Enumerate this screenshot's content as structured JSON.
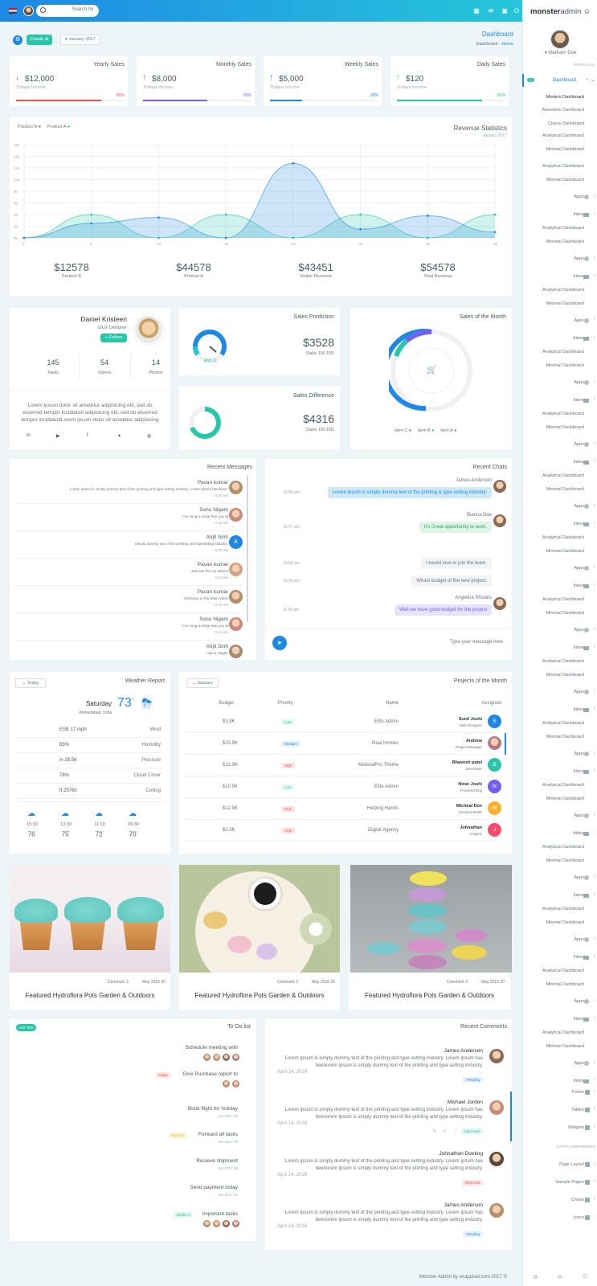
{
  "topbar": {
    "search_placeholder": "Search for"
  },
  "brand": {
    "bold": "monster",
    "light": "admin"
  },
  "user": {
    "name": "Markarn Doe"
  },
  "sidebar": {
    "section_personal": "PERSONAL",
    "active": "Dashboard",
    "active_badge": "4",
    "submenu": [
      "Modern Dashboard",
      "Awesome Dashboard",
      "Classy Dashboard",
      "Analytical Dashboard",
      "Minimal Dashboard"
    ],
    "repeat": [
      "Analytical Dashboard",
      "Minimal Dashboard",
      "Apps",
      "Inbox"
    ],
    "forms": "Forms",
    "tables": "Tables",
    "widgets": "Widgets",
    "section_extra": "EXTRA COMPONENTS",
    "page_layout": "Page Layout",
    "sample_pages": "Sample Pages",
    "charts": "Charts",
    "icons": "Icons"
  },
  "toolbar": {
    "create": "Create",
    "month": "January 2017"
  },
  "breadcrumb": {
    "title": "Dashboard",
    "trail": "Dashboard",
    "home": "Home"
  },
  "stats": [
    {
      "title": "Yearly Sales",
      "value": "$12,000",
      "sub": "Todays Income",
      "pct": "80%",
      "fill": 0.8,
      "color": "#ef5350",
      "arrow": "↓",
      "acolor": "#ef5350"
    },
    {
      "title": "Monthly Sales",
      "value": "$8,000",
      "sub": "Todays Income",
      "pct": "60%",
      "fill": 0.6,
      "color": "#7460ee",
      "arrow": "↑",
      "acolor": "#7460ee"
    },
    {
      "title": "Weekly Sales",
      "value": "$5,000",
      "sub": "Todays Income",
      "pct": "30%",
      "fill": 0.3,
      "color": "#1e88e5",
      "arrow": "↑",
      "acolor": "#1e88e5"
    },
    {
      "title": "Daily Sales",
      "value": "$120",
      "sub": "Todays Income",
      "pct": "80%",
      "fill": 0.8,
      "color": "#26c6a8",
      "arrow": "↑",
      "acolor": "#26c6a8"
    }
  ],
  "revenue": {
    "title": "Revenue Statistics",
    "sub": "January 2017",
    "legend": [
      "Product B",
      "Product A"
    ],
    "totals": [
      {
        "v": "$12578",
        "l": "Product B"
      },
      {
        "v": "$44578",
        "l": "Product A"
      },
      {
        "v": "$43451",
        "l": "Online Revenue"
      },
      {
        "v": "$54578",
        "l": "Total Revenue"
      }
    ]
  },
  "chart_data": {
    "type": "area",
    "x": [
      "0",
      "5",
      "10",
      "15",
      "20",
      "25",
      "30",
      "35"
    ],
    "yticks": [
      "0k",
      "2k",
      "4k",
      "6k",
      "8k",
      "10k",
      "12k",
      "14k",
      "16k"
    ],
    "ylim": [
      0,
      16
    ],
    "series": [
      {
        "name": "Product B",
        "color": "#1e88e5",
        "values": [
          0,
          2.5,
          3.5,
          0,
          12.8,
          1.5,
          3.8,
          1
        ]
      },
      {
        "name": "Product A",
        "color": "#26c6a8",
        "values": [
          0,
          4,
          0,
          4,
          0,
          4,
          0,
          4
        ]
      }
    ]
  },
  "profile": {
    "name": "Daniel Kristeen",
    "role": "UIUX Designer",
    "follow": "Follow",
    "stats": [
      {
        "v": "145",
        "l": "Tasks"
      },
      {
        "v": "54",
        "l": "Videos"
      },
      {
        "v": "14",
        "l": "Photos"
      }
    ],
    "bio": "Lorem ipsum dolor sit ametetur adipisicing elit, sed do eiusmod tempor incididunt adipisicing elit, sed do eiusmod tempor incididuntLorem ipsum dolor sit ametetur adipisicing elit, sed do eiusmod tempor incididunt"
  },
  "prediction": {
    "title": "Sales Prediction",
    "value": "$3528",
    "sub": "(Sales 150-165)",
    "gauge": "Ahd 11"
  },
  "difference": {
    "title": "Sales Difference",
    "value": "$4316",
    "sub": "(Sales 150-165)"
  },
  "month_sales": {
    "title": "Sales of the Month",
    "legend": [
      "Item C",
      "Item B",
      "Item A"
    ]
  },
  "messages": {
    "title": "Recent Messages",
    "items": [
      {
        "name": "Pavan kumar",
        "text": "Lorem Ipsum is simply dummy text of the printing and type setting industry. Lorem Ipsum has been.",
        "time": "9:30 AM"
      },
      {
        "name": "Sonu Nigam",
        "text": "I've sung a song! See you at",
        "time": "9:10 AM"
      },
      {
        "name": "Arijit Sinh",
        "text": "Simply dummy text of the printing and typesetting industry.",
        "time": "9:08 AM",
        "initial": "A"
      },
      {
        "name": "Pavan kumar",
        "text": "Just see the my admin!",
        "time": "9:02 AM"
      },
      {
        "name": "Pavan kumar",
        "text": "Welcome to the Elite Admin",
        "time": "9:30 AM"
      },
      {
        "name": "Sonu Nigam",
        "text": "I've sung a song! See you at",
        "time": "9:10 AM"
      },
      {
        "name": "Arijit Sinh",
        "text": "I am a singer!",
        "time": ""
      }
    ]
  },
  "chats": {
    "title": "Recent Chats",
    "placeholder": "Type your message here",
    "items": [
      {
        "name": "James Anderson",
        "text": "Lorem Ipsum is simply dummy text of the printing & type setting industry.",
        "time": "10:56 am"
      },
      {
        "name": "Bianca Doe",
        "text": "It's Great opportunity to work.",
        "time": "10:57 am"
      },
      {
        "name": "",
        "text": "I would love to join the team.",
        "time": "10:58 am"
      },
      {
        "name": "",
        "text": "Whats budget of the new project.",
        "time": "10:59 am"
      },
      {
        "name": "Angelina Rhodes",
        "text": "Well we have good budget for the project",
        "time": "11:00 am"
      }
    ]
  },
  "weather": {
    "title": "Weather Report",
    "filter": "Today",
    "day": "Saturday",
    "temp": "73",
    "loc": "Ahmedabad, India",
    "rows": [
      [
        "ESE 17 mph",
        "Wind"
      ],
      [
        "83%",
        "Humidity"
      ],
      [
        "in 28.56",
        "Pressure"
      ],
      [
        "78%",
        "Cloud Cover"
      ],
      [
        "ft 25760",
        "Ceiling"
      ]
    ],
    "forecast": [
      {
        "t": "09:30",
        "v": "70"
      },
      {
        "t": "11:30",
        "v": "72"
      },
      {
        "t": "13:30",
        "v": "75"
      },
      {
        "t": "15:30",
        "v": "76"
      }
    ]
  },
  "projects": {
    "title": "Projects of the Month",
    "filter": "January",
    "headers": [
      "Assigned",
      "Name",
      "Priority",
      "Budget"
    ],
    "rows": [
      {
        "name": "Sunil Joshi",
        "role": "Web Designer",
        "project": "Elite Admin",
        "priority": "Low",
        "budget": "$3.9K",
        "initial": "S",
        "color": "#1e88e5"
      },
      {
        "name": "Andrew",
        "role": "Project Manager",
        "project": "Real Homes",
        "priority": "Medium",
        "budget": "$23.9K",
        "initial": "",
        "color": "#d9a5b5"
      },
      {
        "name": "Bhavesh patel",
        "role": "Developer",
        "project": "MedicalPro Theme",
        "priority": "High",
        "budget": "$12.9K",
        "initial": "B",
        "color": "#26c6a8"
      },
      {
        "name": "Nirav Joshi",
        "role": "Frontend Eng",
        "project": "Elite Admin",
        "priority": "Low",
        "budget": "$10.9K",
        "initial": "N",
        "color": "#7460ee"
      },
      {
        "name": "Micheal Doe",
        "role": "Content Writer",
        "project": "Helping Hands",
        "priority": "High",
        "budget": "$12.9K",
        "initial": "M",
        "color": "#ffb22b"
      },
      {
        "name": "Johnathan",
        "role": "Graphic",
        "project": "Digital Agency",
        "priority": "High",
        "budget": "$2.6K",
        "initial": "J",
        "color": "#fc4b6c"
      }
    ]
  },
  "posts": [
    {
      "date": "May 2016 20",
      "comments": "Comment 3",
      "title": "Featured Hydroflora Pots Garden & Outdoors"
    },
    {
      "date": "May 2016 20",
      "comments": "Comment 3",
      "title": "Featured Hydroflora Pots Garden & Outdoors"
    },
    {
      "date": "May 2016 20",
      "comments": "Comment 3",
      "title": "Featured Hydroflora Pots Garden & Outdoors"
    }
  ],
  "todo": {
    "title": "To Do list",
    "add": "Add Task",
    "items": [
      {
        "text": "Schedule meeting with",
        "date": "",
        "tag": ""
      },
      {
        "text": "Give Purchase report to",
        "date": "",
        "tag": "Today"
      },
      {
        "text": "Book flight for holiday",
        "date": "Jun 2017 26",
        "tag": ""
      },
      {
        "text": "Forward all tasks",
        "date": "Jun 2017 26",
        "tag": "weeks 2"
      },
      {
        "text": "Recieve shipment",
        "date": "Jun 2017 26",
        "tag": ""
      },
      {
        "text": "Send payment today",
        "date": "Jun 2017 26",
        "tag": ""
      },
      {
        "text": "Important tasks",
        "date": "",
        "tag": "weeks 2"
      }
    ]
  },
  "comments": {
    "title": "Recent Comments",
    "items": [
      {
        "name": "James Anderson",
        "text": "Lorem Ipsum is simply dummy text of the printing and type setting industry. Lorem Ipsum has beenorem Ipsum is simply dummy text of the printing and type setting industry.",
        "date": "April 14, 2016",
        "status": "Pending",
        "sc": "#1e88e5",
        "sb": "#e3f0fc"
      },
      {
        "name": "Michael Jorden",
        "text": "Lorem Ipsum is simply dummy text of the printing and type setting industry. Lorem Ipsum has beenorem Ipsum is simply dummy text of the printing and type setting industry.",
        "date": "April 14, 2016",
        "status": "Approved",
        "sc": "#26c6a8",
        "sb": "#e0f7f1"
      },
      {
        "name": "Johnathan Doeting",
        "text": "Lorem Ipsum is simply dummy text of the printing and type setting industry. Lorem Ipsum has beenorem Ipsum is simply dummy text of the printing and type setting industry.",
        "date": "April 14, 2016",
        "status": "Rejected",
        "sc": "#ef5350",
        "sb": "#fde3e3"
      },
      {
        "name": "James Anderson",
        "text": "Lorem Ipsum is simply dummy text of the printing and type setting industry. Lorem Ipsum has beenorem Ipsum is simply dummy text of the printing and type setting industry.",
        "date": "April 14, 2016",
        "status": "Pending",
        "sc": "#1e88e5",
        "sb": "#e3f0fc"
      }
    ]
  },
  "footer": "Monster Admin by wrappixel.com 2017 ©"
}
